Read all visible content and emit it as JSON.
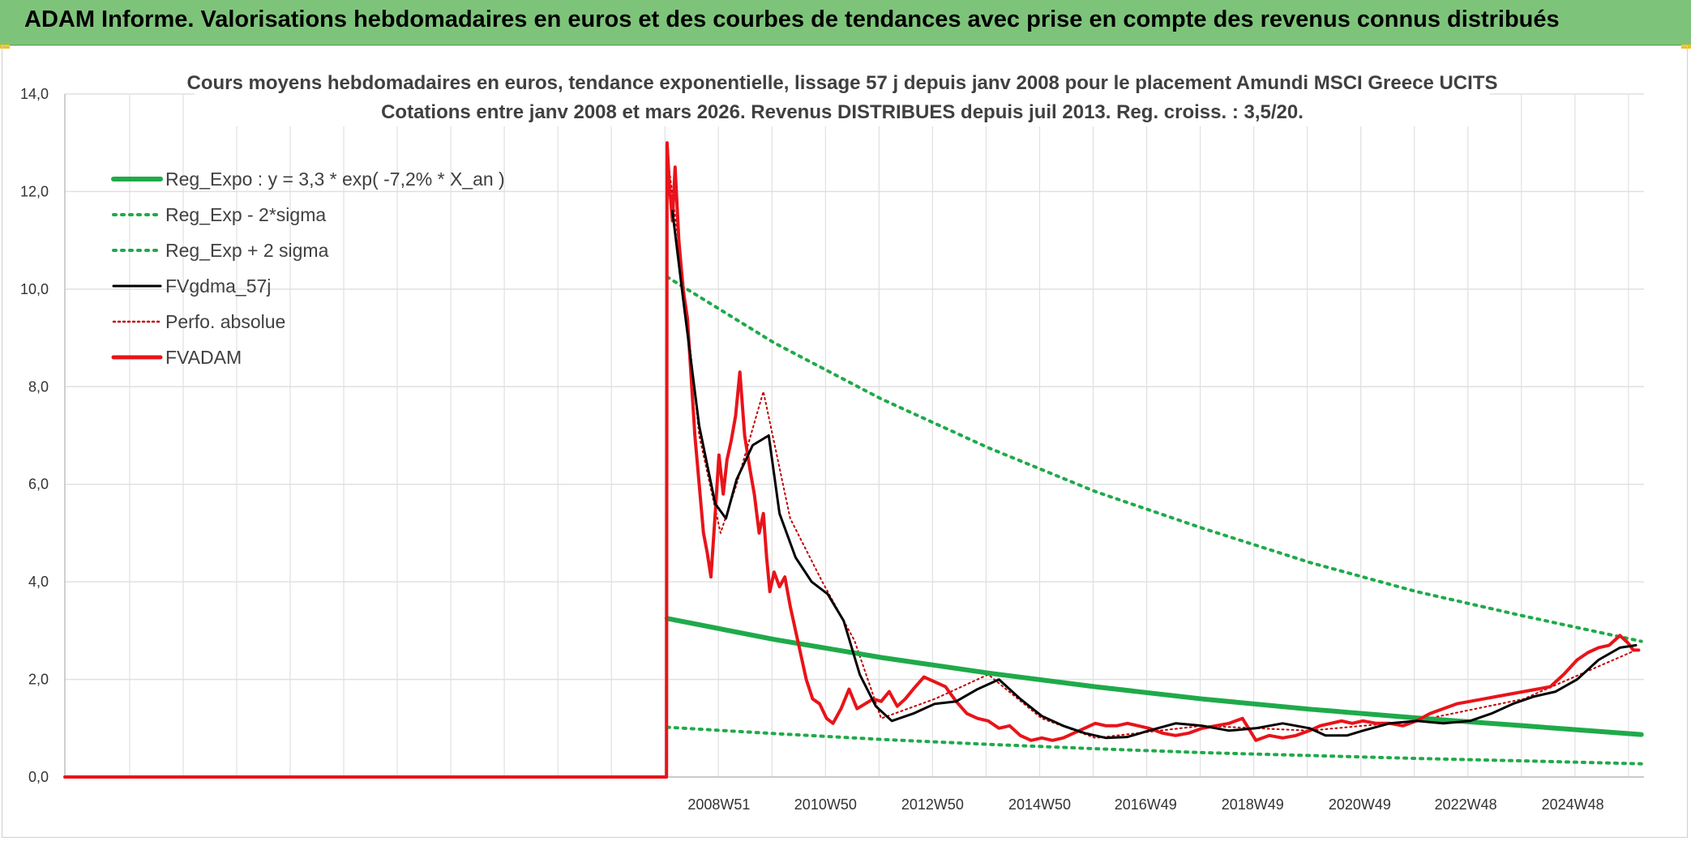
{
  "banner": {
    "title": "ADAM Informe. Valorisations hebdomadaires en euros et des courbes de tendances avec prise en compte des revenus connus distribués"
  },
  "colors": {
    "banner_bg": "#7dc47a",
    "reg_green": "#1faa4a",
    "band_green": "#1faa4a",
    "smooth_black": "#000000",
    "perfo_red": "#c00000",
    "fvadam_red": "#e8141a",
    "grid": "#e0e0e0"
  },
  "chart_data": {
    "type": "line",
    "title": "Cours moyens hebdomadaires en euros, tendance exponentielle, lissage 57 j depuis janv 2008 pour le placement Amundi MSCI Greece UCITS",
    "subtitle": "Cotations entre janv 2008 et mars 2026. Revenus DISTRIBUES depuis juil 2013. Reg. croiss. : 3,5/20.",
    "ylim": [
      0,
      14
    ],
    "yticks": [
      "0,0",
      "2,0",
      "4,0",
      "6,0",
      "8,0",
      "10,0",
      "12,0",
      "14,0"
    ],
    "xticks": [
      {
        "label": "2008W51",
        "x": 2008.97
      },
      {
        "label": "2010W50",
        "x": 2010.96
      },
      {
        "label": "2012W50",
        "x": 2012.96
      },
      {
        "label": "2014W50",
        "x": 2014.96
      },
      {
        "label": "2016W49",
        "x": 2016.94
      },
      {
        "label": "2018W49",
        "x": 2018.94
      },
      {
        "label": "2020W49",
        "x": 2020.94
      },
      {
        "label": "2022W48",
        "x": 2022.92
      },
      {
        "label": "2024W48",
        "x": 2024.92
      }
    ],
    "xlim": [
      1996.75,
      2026.25
    ],
    "legend_position": "top-left",
    "legend": [
      {
        "name": "Reg_Expo : y = 3,3 * exp( -7,2% *  X_an )",
        "style": "solid-thick",
        "color": "#1faa4a"
      },
      {
        "name": "Reg_Exp - 2*sigma",
        "style": "dotted",
        "color": "#1faa4a"
      },
      {
        "name": "Reg_Exp + 2 sigma",
        "style": "dotted",
        "color": "#1faa4a"
      },
      {
        "name": "FVgdma_57j",
        "style": "solid",
        "color": "#000000"
      },
      {
        "name": "Perfo. absolue",
        "style": "dotted",
        "color": "#c00000"
      },
      {
        "name": "FVADAM",
        "style": "solid-thick",
        "color": "#e8141a"
      }
    ],
    "series": [
      {
        "name": "Reg_Expo : y = 3,3 * exp( -7,2% *  X_an )",
        "x": [
          2008.0,
          2010.0,
          2012.0,
          2014.0,
          2016.0,
          2018.0,
          2020.0,
          2022.0,
          2024.0,
          2026.2
        ],
        "y": [
          3.25,
          2.82,
          2.45,
          2.13,
          1.85,
          1.6,
          1.39,
          1.21,
          1.05,
          0.87
        ]
      },
      {
        "name": "Reg_Exp - 2*sigma",
        "x": [
          2008.0,
          2010.0,
          2012.0,
          2014.0,
          2016.0,
          2018.0,
          2020.0,
          2022.0,
          2024.0,
          2026.2
        ],
        "y": [
          1.02,
          0.89,
          0.77,
          0.67,
          0.58,
          0.5,
          0.44,
          0.38,
          0.33,
          0.27
        ]
      },
      {
        "name": "Reg_Exp + 2 sigma",
        "x": [
          2008.0,
          2010.0,
          2012.0,
          2014.0,
          2016.0,
          2018.0,
          2020.0,
          2022.0,
          2024.0,
          2026.2
        ],
        "y": [
          10.25,
          8.9,
          7.75,
          6.75,
          5.85,
          5.1,
          4.4,
          3.8,
          3.3,
          2.78
        ]
      },
      {
        "name": "FVgdma_57j",
        "x": [
          2008.1,
          2008.3,
          2008.6,
          2008.9,
          2009.1,
          2009.3,
          2009.6,
          2009.9,
          2010.1,
          2010.4,
          2010.7,
          2011.0,
          2011.3,
          2011.6,
          2011.9,
          2012.2,
          2012.6,
          2013.0,
          2013.4,
          2013.8,
          2014.2,
          2014.6,
          2015.0,
          2015.4,
          2015.8,
          2016.2,
          2016.6,
          2017.0,
          2017.5,
          2018.0,
          2018.5,
          2019.0,
          2019.5,
          2020.0,
          2020.3,
          2020.7,
          2021.0,
          2021.5,
          2022.0,
          2022.5,
          2023.0,
          2023.4,
          2023.8,
          2024.2,
          2024.6,
          2025.0,
          2025.4,
          2025.8,
          2026.1
        ],
        "y": [
          11.6,
          9.8,
          7.2,
          5.6,
          5.3,
          6.1,
          6.8,
          7.0,
          5.4,
          4.5,
          4.0,
          3.75,
          3.2,
          2.1,
          1.45,
          1.15,
          1.3,
          1.5,
          1.55,
          1.8,
          2.0,
          1.6,
          1.25,
          1.05,
          0.9,
          0.8,
          0.82,
          0.95,
          1.1,
          1.05,
          0.95,
          1.0,
          1.1,
          1.0,
          0.85,
          0.85,
          0.95,
          1.1,
          1.15,
          1.1,
          1.15,
          1.3,
          1.5,
          1.65,
          1.75,
          2.0,
          2.4,
          2.65,
          2.7
        ]
      },
      {
        "name": "Perfo. absolue",
        "x": [
          1996.75,
          2007.99,
          2008.0,
          2008.3,
          2008.6,
          2009.0,
          2009.3,
          2009.8,
          2010.3,
          2010.9,
          2011.5,
          2012.0,
          2013.0,
          2014.0,
          2015.0,
          2016.0,
          2018.0,
          2020.0,
          2022.0,
          2024.0,
          2026.1
        ],
        "y": [
          0,
          0,
          12.8,
          10.2,
          7.0,
          5.0,
          6.0,
          7.9,
          5.3,
          4.0,
          2.8,
          1.2,
          1.6,
          2.1,
          1.2,
          0.8,
          1.05,
          0.95,
          1.15,
          1.6,
          2.6
        ]
      },
      {
        "name": "FVADAM",
        "x": [
          1996.75,
          2007.99,
          2008.0,
          2008.04,
          2008.1,
          2008.15,
          2008.22,
          2008.3,
          2008.38,
          2008.45,
          2008.52,
          2008.6,
          2008.68,
          2008.75,
          2008.82,
          2008.9,
          2008.97,
          2009.05,
          2009.12,
          2009.2,
          2009.28,
          2009.36,
          2009.45,
          2009.55,
          2009.63,
          2009.72,
          2009.8,
          2009.86,
          2009.92,
          2010.0,
          2010.1,
          2010.2,
          2010.3,
          2010.4,
          2010.5,
          2010.6,
          2010.72,
          2010.85,
          2010.98,
          2011.1,
          2011.25,
          2011.4,
          2011.55,
          2011.7,
          2011.85,
          2012.0,
          2012.15,
          2012.3,
          2012.45,
          2012.6,
          2012.8,
          2013.0,
          2013.2,
          2013.4,
          2013.6,
          2013.8,
          2014.0,
          2014.2,
          2014.4,
          2014.6,
          2014.8,
          2015.0,
          2015.2,
          2015.4,
          2015.6,
          2015.8,
          2016.0,
          2016.2,
          2016.4,
          2016.6,
          2016.8,
          2017.0,
          2017.25,
          2017.5,
          2017.75,
          2018.0,
          2018.25,
          2018.5,
          2018.75,
          2019.0,
          2019.25,
          2019.5,
          2019.75,
          2020.0,
          2020.1,
          2020.2,
          2020.4,
          2020.6,
          2020.8,
          2021.0,
          2021.25,
          2021.5,
          2021.75,
          2022.0,
          2022.25,
          2022.5,
          2022.75,
          2023.0,
          2023.25,
          2023.5,
          2023.75,
          2024.0,
          2024.25,
          2024.5,
          2024.75,
          2025.0,
          2025.2,
          2025.4,
          2025.6,
          2025.8,
          2025.95,
          2026.05,
          2026.15
        ],
        "y": [
          0,
          0,
          13.0,
          12.2,
          11.4,
          12.5,
          11.0,
          10.0,
          9.4,
          8.2,
          7.0,
          6.0,
          5.0,
          4.6,
          4.1,
          5.4,
          6.6,
          5.8,
          6.5,
          6.9,
          7.4,
          8.3,
          7.0,
          6.3,
          5.8,
          5.0,
          5.4,
          4.5,
          3.8,
          4.2,
          3.9,
          4.1,
          3.5,
          3.0,
          2.5,
          2.0,
          1.6,
          1.5,
          1.2,
          1.1,
          1.4,
          1.8,
          1.4,
          1.5,
          1.6,
          1.55,
          1.75,
          1.45,
          1.6,
          1.8,
          2.05,
          1.95,
          1.85,
          1.55,
          1.3,
          1.2,
          1.15,
          1.0,
          1.05,
          0.85,
          0.75,
          0.8,
          0.75,
          0.8,
          0.9,
          1.0,
          1.1,
          1.05,
          1.05,
          1.1,
          1.05,
          1.0,
          0.9,
          0.85,
          0.9,
          1.0,
          1.05,
          1.1,
          1.2,
          0.75,
          0.85,
          0.8,
          0.85,
          0.95,
          1.0,
          1.05,
          1.1,
          1.15,
          1.1,
          1.15,
          1.1,
          1.1,
          1.05,
          1.15,
          1.3,
          1.4,
          1.5,
          1.55,
          1.6,
          1.65,
          1.7,
          1.75,
          1.8,
          1.85,
          2.1,
          2.4,
          2.55,
          2.65,
          2.7,
          2.9,
          2.75,
          2.6,
          2.6
        ]
      }
    ]
  }
}
